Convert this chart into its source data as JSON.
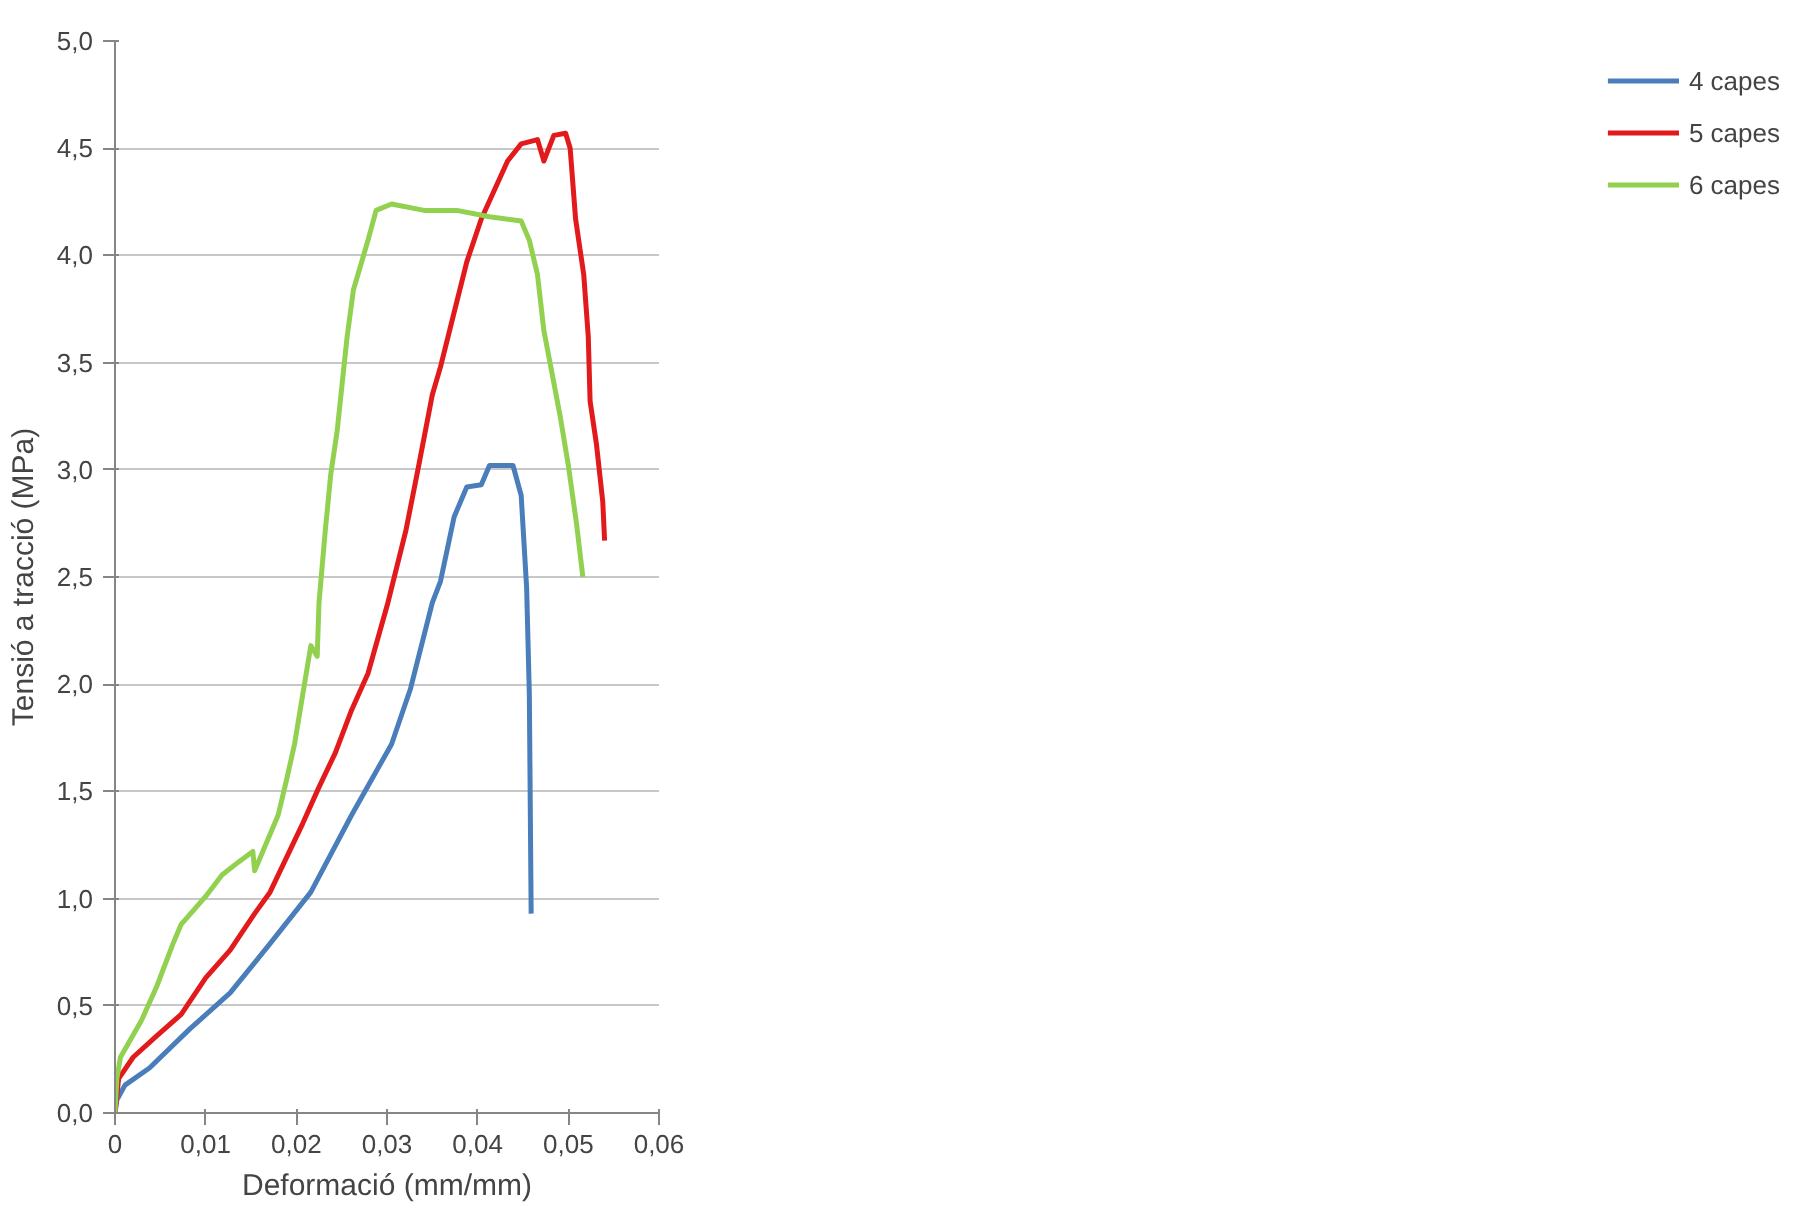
{
  "chart_data": {
    "type": "line",
    "xlabel": "Deformació (mm/mm)",
    "ylabel": "Tensió a tracció (MPa)",
    "xlim": [
      0,
      0.06
    ],
    "ylim": [
      0,
      5
    ],
    "xticks": [
      {
        "value": 0,
        "label": "0"
      },
      {
        "value": 0.01,
        "label": "0,01"
      },
      {
        "value": 0.02,
        "label": "0,02"
      },
      {
        "value": 0.03,
        "label": "0,03"
      },
      {
        "value": 0.04,
        "label": "0,04"
      },
      {
        "value": 0.05,
        "label": "0,05"
      },
      {
        "value": 0.06,
        "label": "0,06"
      }
    ],
    "yticks": [
      {
        "value": 0,
        "label": "0,0"
      },
      {
        "value": 0.5,
        "label": "0,5"
      },
      {
        "value": 1,
        "label": "1,0"
      },
      {
        "value": 1.5,
        "label": "1,5"
      },
      {
        "value": 2,
        "label": "2,0"
      },
      {
        "value": 2.5,
        "label": "2,5"
      },
      {
        "value": 3,
        "label": "3,0"
      },
      {
        "value": 3.5,
        "label": "3,5"
      },
      {
        "value": 4,
        "label": "4,0"
      },
      {
        "value": 4.5,
        "label": "4,5"
      },
      {
        "value": 5,
        "label": "5,0"
      }
    ],
    "grid": "y",
    "legend": "right",
    "marker": "none",
    "line_style": "solid",
    "series": [
      {
        "name": "4 capes",
        "color": "#4a7ebb",
        "x": [
          0,
          0.0002,
          0.0011,
          0.0038,
          0.0082,
          0.0127,
          0.0171,
          0.0216,
          0.0261,
          0.0305,
          0.0326,
          0.035,
          0.0359,
          0.0374,
          0.0388,
          0.0404,
          0.0413,
          0.0439,
          0.0448,
          0.0454,
          0.0457,
          0.0459
        ],
        "values": [
          0,
          0.06,
          0.13,
          0.21,
          0.39,
          0.56,
          0.79,
          1.03,
          1.39,
          1.72,
          1.98,
          2.38,
          2.48,
          2.78,
          2.92,
          2.93,
          3.02,
          3.02,
          2.88,
          2.45,
          1.95,
          0.93
        ]
      },
      {
        "name": "5 capes",
        "color": "#e31a1c",
        "x": [
          0,
          0.0004,
          0.002,
          0.0046,
          0.0073,
          0.01,
          0.0127,
          0.0154,
          0.0171,
          0.0189,
          0.0207,
          0.0225,
          0.0243,
          0.0261,
          0.0279,
          0.0301,
          0.0321,
          0.0335,
          0.035,
          0.0359,
          0.0388,
          0.0404,
          0.0433,
          0.0448,
          0.0466,
          0.0473,
          0.0484,
          0.0497,
          0.0502,
          0.0508,
          0.0517,
          0.0522,
          0.0524,
          0.0531,
          0.0538,
          0.054
        ],
        "values": [
          0,
          0.16,
          0.26,
          0.36,
          0.46,
          0.63,
          0.76,
          0.93,
          1.03,
          1.19,
          1.35,
          1.52,
          1.68,
          1.88,
          2.05,
          2.38,
          2.72,
          3.02,
          3.35,
          3.48,
          3.97,
          4.17,
          4.44,
          4.52,
          4.54,
          4.44,
          4.56,
          4.57,
          4.5,
          4.17,
          3.91,
          3.62,
          3.32,
          3.12,
          2.85,
          2.67
        ]
      },
      {
        "name": "6 capes",
        "color": "#92d050",
        "x": [
          0,
          0.0002,
          0.0006,
          0.0029,
          0.0046,
          0.0064,
          0.0073,
          0.01,
          0.0118,
          0.0136,
          0.0152,
          0.0154,
          0.0163,
          0.018,
          0.0189,
          0.0198,
          0.0207,
          0.0216,
          0.0223,
          0.0225,
          0.0232,
          0.0238,
          0.0245,
          0.025,
          0.0256,
          0.0263,
          0.027,
          0.0279,
          0.0288,
          0.0305,
          0.0341,
          0.0377,
          0.0413,
          0.0448,
          0.0457,
          0.0466,
          0.0473,
          0.0482,
          0.0491,
          0.05,
          0.0509,
          0.0516
        ],
        "values": [
          0,
          0.16,
          0.26,
          0.43,
          0.59,
          0.79,
          0.88,
          1.01,
          1.11,
          1.17,
          1.22,
          1.13,
          1.22,
          1.39,
          1.55,
          1.72,
          1.95,
          2.18,
          2.13,
          2.38,
          2.72,
          2.98,
          3.18,
          3.38,
          3.62,
          3.84,
          3.94,
          4.07,
          4.21,
          4.24,
          4.21,
          4.21,
          4.18,
          4.16,
          4.07,
          3.91,
          3.65,
          3.45,
          3.25,
          3.02,
          2.75,
          2.5
        ]
      }
    ]
  }
}
